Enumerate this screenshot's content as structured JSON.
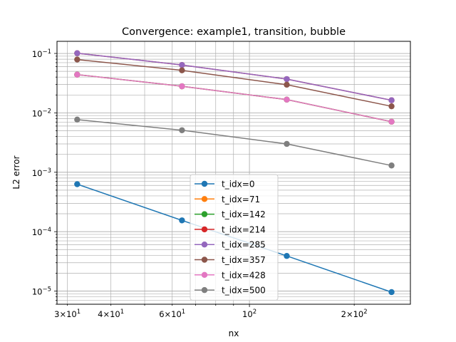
{
  "chart_data": {
    "type": "line",
    "title": "Convergence: example1, transition, bubble",
    "xlabel": "nx",
    "ylabel": "L2 error",
    "xscale": "log",
    "yscale": "log",
    "xlim": [
      28,
      290
    ],
    "ylim": [
      6e-06,
      0.16
    ],
    "grid": true,
    "legend_position": "center-bottom",
    "x": [
      32,
      64,
      128,
      256
    ],
    "x_ticks": [
      {
        "value": 30,
        "label": "3×10^1"
      },
      {
        "value": 40,
        "label": "4×10^1"
      },
      {
        "value": 60,
        "label": "6×10^1"
      },
      {
        "value": 100,
        "label": "10^2"
      },
      {
        "value": 200,
        "label": "2×10^2"
      }
    ],
    "y_ticks": [
      {
        "value": 1e-05,
        "label": "10^−5"
      },
      {
        "value": 0.0001,
        "label": "10^−4"
      },
      {
        "value": 0.001,
        "label": "10^−3"
      },
      {
        "value": 0.01,
        "label": "10^−2"
      },
      {
        "value": 0.1,
        "label": "10^−1"
      }
    ],
    "series": [
      {
        "name": "t_idx=0",
        "color": "#1f77b4",
        "values": [
          0.00063,
          0.000155,
          3.9e-05,
          9.6e-06
        ]
      },
      {
        "name": "t_idx=71",
        "color": "#ff7f0e",
        "values": [
          0.044,
          0.028,
          0.0167,
          0.0071
        ]
      },
      {
        "name": "t_idx=142",
        "color": "#2ca02c",
        "values": [
          0.044,
          0.028,
          0.0167,
          0.0071
        ]
      },
      {
        "name": "t_idx=214",
        "color": "#d62728",
        "values": [
          0.101,
          0.064,
          0.037,
          0.0163
        ]
      },
      {
        "name": "t_idx=285",
        "color": "#9467bd",
        "values": [
          0.101,
          0.064,
          0.037,
          0.0163
        ]
      },
      {
        "name": "t_idx=357",
        "color": "#8c564b",
        "values": [
          0.079,
          0.052,
          0.0298,
          0.0129
        ]
      },
      {
        "name": "t_idx=428",
        "color": "#e377c2",
        "values": [
          0.044,
          0.028,
          0.0167,
          0.0071
        ]
      },
      {
        "name": "t_idx=500",
        "color": "#7f7f7f",
        "values": [
          0.0077,
          0.0051,
          0.003,
          0.0013
        ]
      }
    ]
  }
}
